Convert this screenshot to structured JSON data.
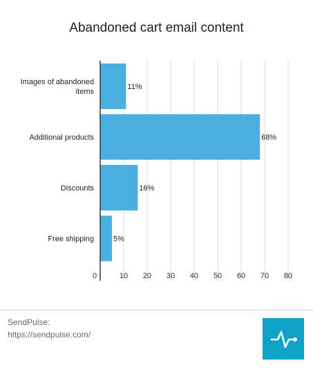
{
  "chart_data": {
    "type": "bar",
    "orientation": "horizontal",
    "title": "Abandoned cart email content",
    "categories": [
      "Images of abandoned items",
      "Additional products",
      "Discounts",
      "Free shipping"
    ],
    "category_lines": [
      [
        "Images of abandoned",
        "items"
      ],
      [
        "Additional products"
      ],
      [
        "Discounts"
      ],
      [
        "Free shipping"
      ]
    ],
    "values": [
      11,
      68,
      16,
      5
    ],
    "data_labels": [
      "11%",
      "68%",
      "16%",
      "5%"
    ],
    "xlim": [
      0,
      80
    ],
    "xticks": [
      0,
      10,
      20,
      30,
      40,
      50,
      60,
      70,
      80
    ],
    "grid": true,
    "bar_color": "#4aaee0"
  },
  "footer": {
    "source_name": "SendPulse:",
    "source_url": "https://sendpulse.com/"
  },
  "logo": {
    "icon": "pulse-icon",
    "color": "#0fa1c7"
  }
}
